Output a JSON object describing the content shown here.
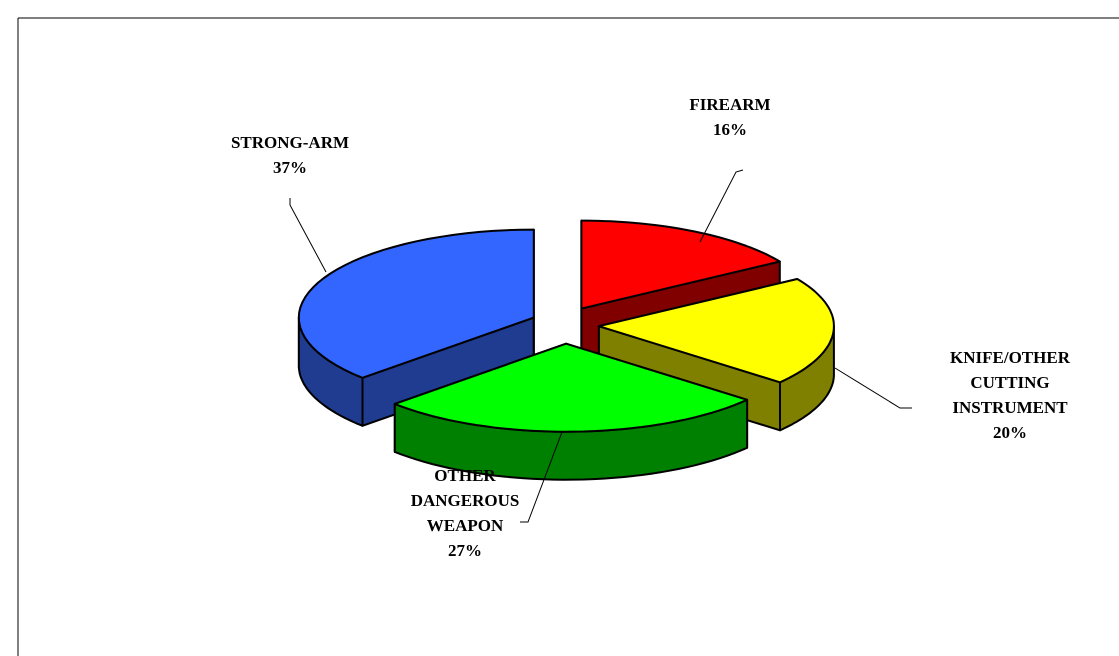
{
  "chart_data": {
    "type": "pie3d",
    "categories": [
      "FIREARM",
      "KNIFE/OTHER CUTTING INSTRUMENT",
      "OTHER DANGEROUS WEAPON",
      "STRONG-ARM"
    ],
    "values": [
      16,
      20,
      27,
      37
    ],
    "value_labels": [
      "16%",
      "20%",
      "27%",
      "37%"
    ],
    "colors": [
      "#ff0000",
      "#ffff00",
      "#00ff00",
      "#3366ff"
    ],
    "side_colors": [
      "#800000",
      "#808000",
      "#008000",
      "#203c90"
    ]
  }
}
